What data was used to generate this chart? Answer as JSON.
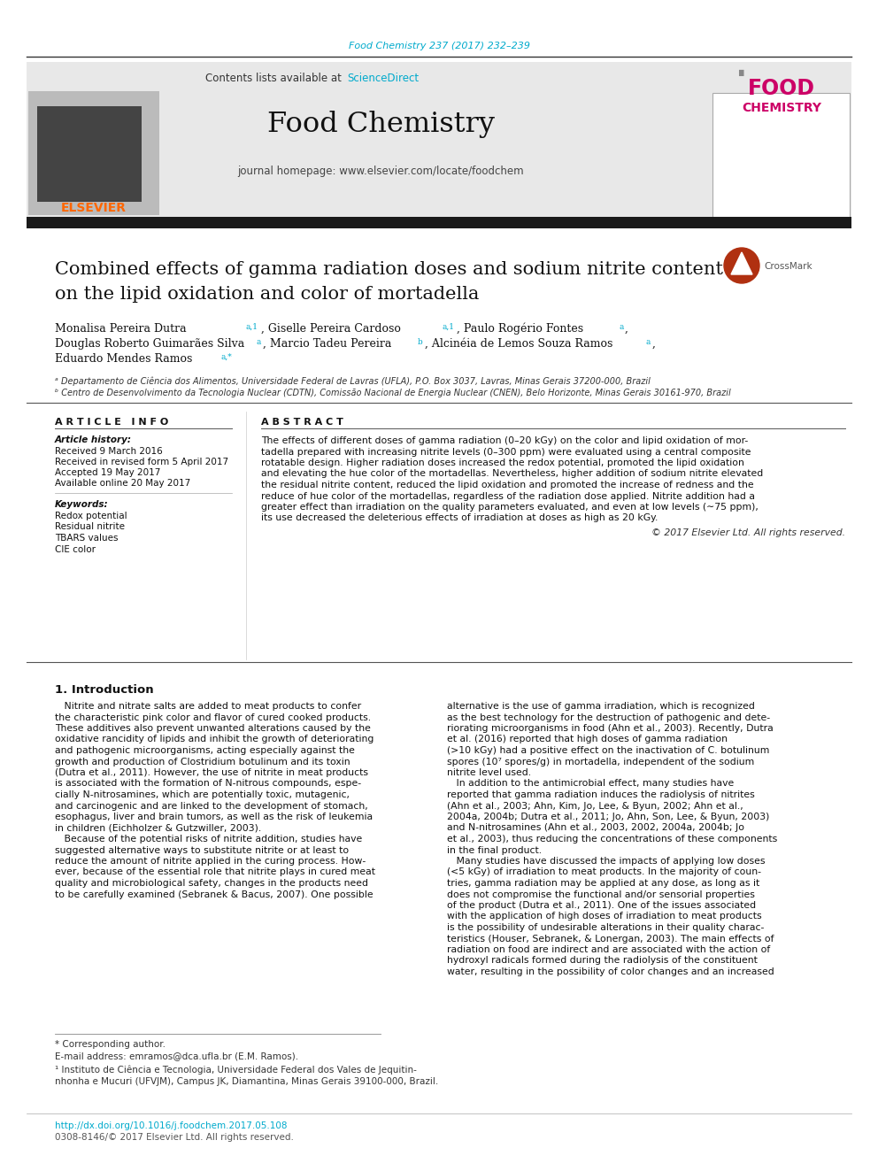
{
  "page_bg": "#ffffff",
  "top_journal_text": "Food Chemistry 237 (2017) 232–239",
  "top_journal_color": "#00aacc",
  "header_bg": "#e8e8e8",
  "header_contents_text": "Contents lists available at ",
  "header_sciencedirect_text": "ScienceDirect",
  "header_sciencedirect_color": "#00aacc",
  "header_journal_name": "Food Chemistry",
  "header_homepage_text": "journal homepage: www.elsevier.com/locate/foodchem",
  "elsevier_color": "#ff6600",
  "black_bar_color": "#1a1a1a",
  "article_title_line1": "Combined effects of gamma radiation doses and sodium nitrite content",
  "article_title_line2": "on the lipid oxidation and color of mortadella",
  "affil_a": "ᵃ Departamento de Ciência dos Alimentos, Universidade Federal de Lavras (UFLA), P.O. Box 3037, Lavras, Minas Gerais 37200-000, Brazil",
  "affil_b": "ᵇ Centro de Desenvolvimento da Tecnologia Nuclear (CDTN), Comissão Nacional de Energia Nuclear (CNEN), Belo Horizonte, Minas Gerais 30161-970, Brazil",
  "article_info_header": "A R T I C L E   I N F O",
  "abstract_header": "A B S T R A C T",
  "article_history_label": "Article history:",
  "received": "Received 9 March 2016",
  "received_revised": "Received in revised form 5 April 2017",
  "accepted": "Accepted 19 May 2017",
  "available": "Available online 20 May 2017",
  "keywords_label": "Keywords:",
  "keywords": [
    "Redox potential",
    "Residual nitrite",
    "TBARS values",
    "CIE color"
  ],
  "abstract_text": "The effects of different doses of gamma radiation (0–20 kGy) on the color and lipid oxidation of mor-\ntadella prepared with increasing nitrite levels (0–300 ppm) were evaluated using a central composite\nrotatable design. Higher radiation doses increased the redox potential, promoted the lipid oxidation\nand elevating the hue color of the mortadellas. Nevertheless, higher addition of sodium nitrite elevated\nthe residual nitrite content, reduced the lipid oxidation and promoted the increase of redness and the\nreduce of hue color of the mortadellas, regardless of the radiation dose applied. Nitrite addition had a\ngreater effect than irradiation on the quality parameters evaluated, and even at low levels (∼75 ppm),\nits use decreased the deleterious effects of irradiation at doses as high as 20 kGy.",
  "copyright_text": "© 2017 Elsevier Ltd. All rights reserved.",
  "intro_header": "1. Introduction",
  "intro_col1": [
    "   Nitrite and nitrate salts are added to meat products to confer",
    "the characteristic pink color and flavor of cured cooked products.",
    "These additives also prevent unwanted alterations caused by the",
    "oxidative rancidity of lipids and inhibit the growth of deteriorating",
    "and pathogenic microorganisms, acting especially against the",
    "growth and production of Clostridium botulinum and its toxin",
    "(Dutra et al., 2011). However, the use of nitrite in meat products",
    "is associated with the formation of N-nitrous compounds, espe-",
    "cially N-nitrosamines, which are potentially toxic, mutagenic,",
    "and carcinogenic and are linked to the development of stomach,",
    "esophagus, liver and brain tumors, as well as the risk of leukemia",
    "in children (Eichholzer & Gutzwiller, 2003).",
    "   Because of the potential risks of nitrite addition, studies have",
    "suggested alternative ways to substitute nitrite or at least to",
    "reduce the amount of nitrite applied in the curing process. How-",
    "ever, because of the essential role that nitrite plays in cured meat",
    "quality and microbiological safety, changes in the products need",
    "to be carefully examined (Sebranek & Bacus, 2007). One possible"
  ],
  "intro_col2": [
    "alternative is the use of gamma irradiation, which is recognized",
    "as the best technology for the destruction of pathogenic and dete-",
    "riorating microorganisms in food (Ahn et al., 2003). Recently, Dutra",
    "et al. (2016) reported that high doses of gamma radiation",
    "(>10 kGy) had a positive effect on the inactivation of C. botulinum",
    "spores (10⁷ spores/g) in mortadella, independent of the sodium",
    "nitrite level used.",
    "   In addition to the antimicrobial effect, many studies have",
    "reported that gamma radiation induces the radiolysis of nitrites",
    "(Ahn et al., 2003; Ahn, Kim, Jo, Lee, & Byun, 2002; Ahn et al.,",
    "2004a, 2004b; Dutra et al., 2011; Jo, Ahn, Son, Lee, & Byun, 2003)",
    "and N-nitrosamines (Ahn et al., 2003, 2002, 2004a, 2004b; Jo",
    "et al., 2003), thus reducing the concentrations of these components",
    "in the final product.",
    "   Many studies have discussed the impacts of applying low doses",
    "(<5 kGy) of irradiation to meat products. In the majority of coun-",
    "tries, gamma radiation may be applied at any dose, as long as it",
    "does not compromise the functional and/or sensorial properties",
    "of the product (Dutra et al., 2011). One of the issues associated",
    "with the application of high doses of irradiation to meat products",
    "is the possibility of undesirable alterations in their quality charac-",
    "teristics (Houser, Sebranek, & Lonergan, 2003). The main effects of",
    "radiation on food are indirect and are associated with the action of",
    "hydroxyl radicals formed during the radiolysis of the constituent",
    "water, resulting in the possibility of color changes and an increased"
  ],
  "footnote_corresponding": "* Corresponding author.",
  "footnote_email": "E-mail address: emramos@dca.ufla.br (E.M. Ramos).",
  "footnote_1a": "¹ Instituto de Ciência e Tecnologia, Universidade Federal dos Vales de Jequitin-",
  "footnote_1b": "nhonha e Mucuri (UFVJM), Campus JK, Diamantina, Minas Gerais 39100-000, Brazil.",
  "doi_text": "http://dx.doi.org/10.1016/j.foodchem.2017.05.108",
  "issn_text": "0308-8146/© 2017 Elsevier Ltd. All rights reserved."
}
